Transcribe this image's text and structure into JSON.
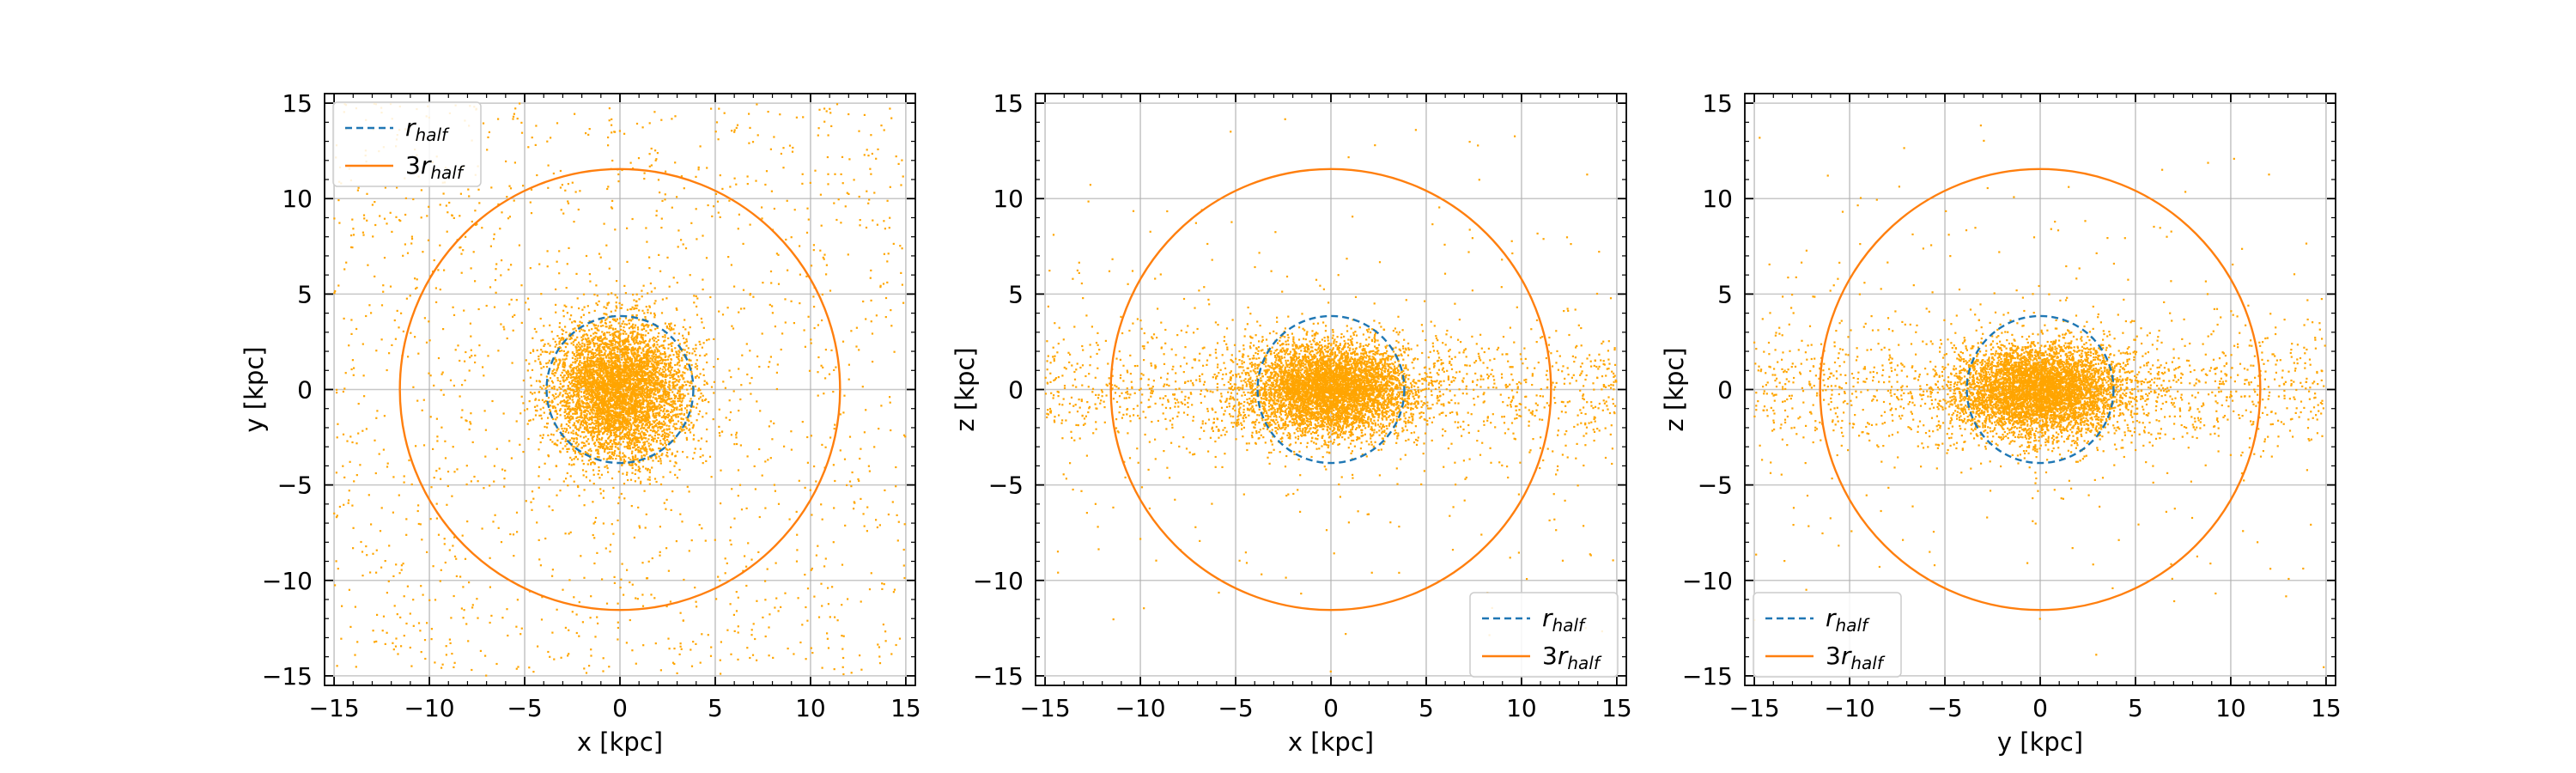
{
  "chart_data": [
    {
      "type": "scatter",
      "xlabel": "x [kpc]",
      "ylabel": "y [kpc]",
      "xlim": [
        -15.5,
        15.5
      ],
      "ylim": [
        -15.5,
        15.5
      ],
      "xticks": [
        "−15",
        "−10",
        "−5",
        "0",
        "5",
        "10",
        "15"
      ],
      "yticks": [
        "−15",
        "−10",
        "−5",
        "0",
        "5",
        "10",
        "15"
      ],
      "grid": true,
      "legend_position": "top-left",
      "particles": {
        "color": "#ffa500",
        "core_sigma": [
          1.8,
          1.8
        ],
        "halo_extent": 15
      },
      "circles": [
        {
          "legend_label": "r_half",
          "legend_base": "r",
          "legend_prefix": "",
          "legend_sub": "half",
          "radius": 3.85,
          "color": "#1f77b4",
          "style": "dashed"
        },
        {
          "legend_label": "3r_half",
          "legend_base": "r",
          "legend_prefix": "3",
          "legend_sub": "half",
          "radius": 11.55,
          "color": "#ff7f0e",
          "style": "solid"
        }
      ]
    },
    {
      "type": "scatter",
      "xlabel": "x [kpc]",
      "ylabel": "z [kpc]",
      "xlim": [
        -15.5,
        15.5
      ],
      "ylim": [
        -15.5,
        15.5
      ],
      "xticks": [
        "−15",
        "−10",
        "−5",
        "0",
        "5",
        "10",
        "15"
      ],
      "yticks": [
        "−15",
        "−10",
        "−5",
        "0",
        "5",
        "10",
        "15"
      ],
      "grid": true,
      "legend_position": "bottom-right",
      "particles": {
        "color": "#ffa500",
        "core_sigma": [
          2.2,
          1.2
        ],
        "halo_extent": 15
      },
      "circles": [
        {
          "legend_label": "r_half",
          "legend_base": "r",
          "legend_prefix": "",
          "legend_sub": "half",
          "radius": 3.85,
          "color": "#1f77b4",
          "style": "dashed"
        },
        {
          "legend_label": "3r_half",
          "legend_base": "r",
          "legend_prefix": "3",
          "legend_sub": "half",
          "radius": 11.55,
          "color": "#ff7f0e",
          "style": "solid"
        }
      ]
    },
    {
      "type": "scatter",
      "xlabel": "y [kpc]",
      "ylabel": "z [kpc]",
      "xlim": [
        -15.5,
        15.5
      ],
      "ylim": [
        -15.5,
        15.5
      ],
      "xticks": [
        "−15",
        "−10",
        "−5",
        "0",
        "5",
        "10",
        "15"
      ],
      "yticks": [
        "−15",
        "−10",
        "−5",
        "0",
        "5",
        "10",
        "15"
      ],
      "grid": true,
      "legend_position": "bottom-left",
      "particles": {
        "color": "#ffa500",
        "core_sigma": [
          2.2,
          1.2
        ],
        "halo_extent": 15
      },
      "circles": [
        {
          "legend_label": "r_half",
          "legend_base": "r",
          "legend_prefix": "",
          "legend_sub": "half",
          "radius": 3.85,
          "color": "#1f77b4",
          "style": "dashed"
        },
        {
          "legend_label": "3r_half",
          "legend_base": "r",
          "legend_prefix": "3",
          "legend_sub": "half",
          "radius": 11.55,
          "color": "#ff7f0e",
          "style": "solid"
        }
      ]
    }
  ]
}
